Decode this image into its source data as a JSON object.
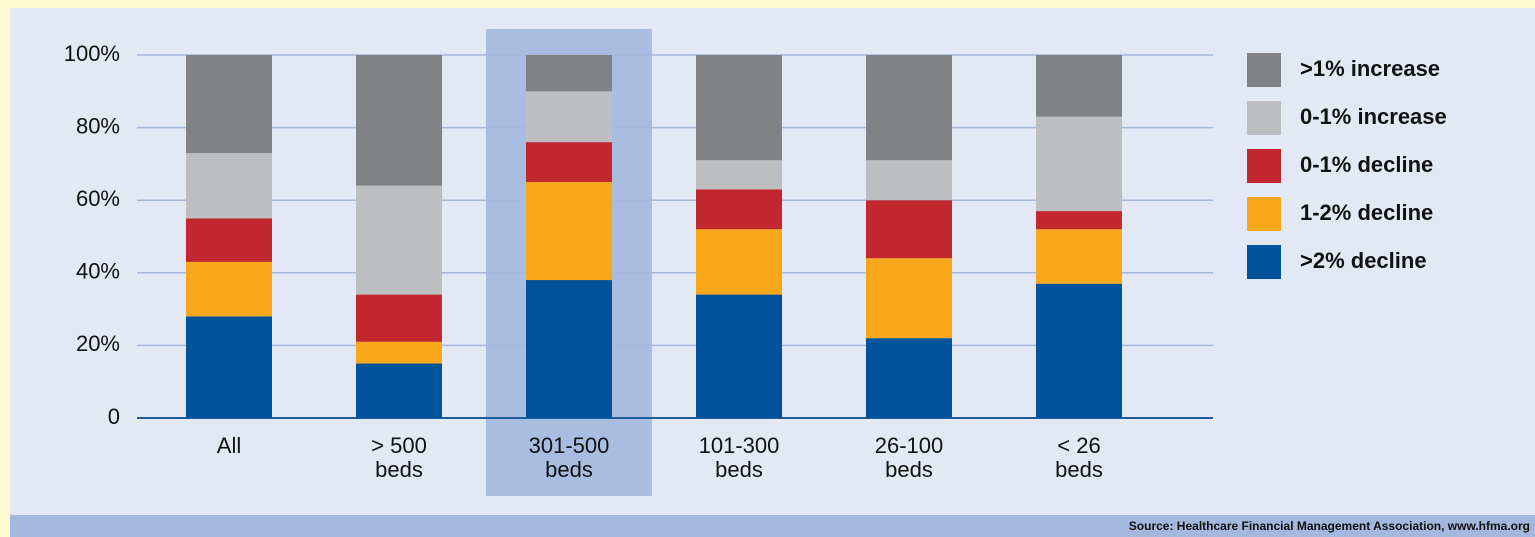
{
  "chart_data": {
    "type": "stacked_bar",
    "categories": [
      [
        "All"
      ],
      [
        "> 500",
        "beds"
      ],
      [
        "301-500",
        "beds"
      ],
      [
        "101-300",
        "beds"
      ],
      [
        "26-100",
        "beds"
      ],
      [
        "< 26",
        "beds"
      ]
    ],
    "series": [
      {
        "name": ">2% decline",
        "color": "#00529b",
        "values": [
          28,
          15,
          38,
          34,
          22,
          37
        ]
      },
      {
        "name": "1-2% decline",
        "color": "#f9a81b",
        "values": [
          15,
          6,
          27,
          18,
          22,
          15
        ]
      },
      {
        "name": "0-1% decline",
        "color": "#c1272d",
        "values": [
          12,
          13,
          11,
          11,
          16,
          5
        ]
      },
      {
        "name": "0-1% increase",
        "color": "#bcbec0",
        "values": [
          18,
          30,
          14,
          8,
          11,
          26
        ]
      },
      {
        "name": ">1% increase",
        "color": "#808285",
        "values": [
          27,
          36,
          10,
          29,
          29,
          17
        ]
      }
    ],
    "ylim": [
      0,
      100
    ],
    "yticks": [
      0,
      {
        "value": 20,
        "label": "20%"
      },
      {
        "value": 40,
        "label": "40%"
      },
      {
        "value": 60,
        "label": "60%"
      },
      {
        "value": 80,
        "label": "80%"
      },
      {
        "value": 100,
        "label": "100%"
      }
    ],
    "grid": true,
    "highlight_index": 2,
    "legend": "right",
    "source": "Source: Healthcare Financial Management Association, www.hfma.org"
  }
}
